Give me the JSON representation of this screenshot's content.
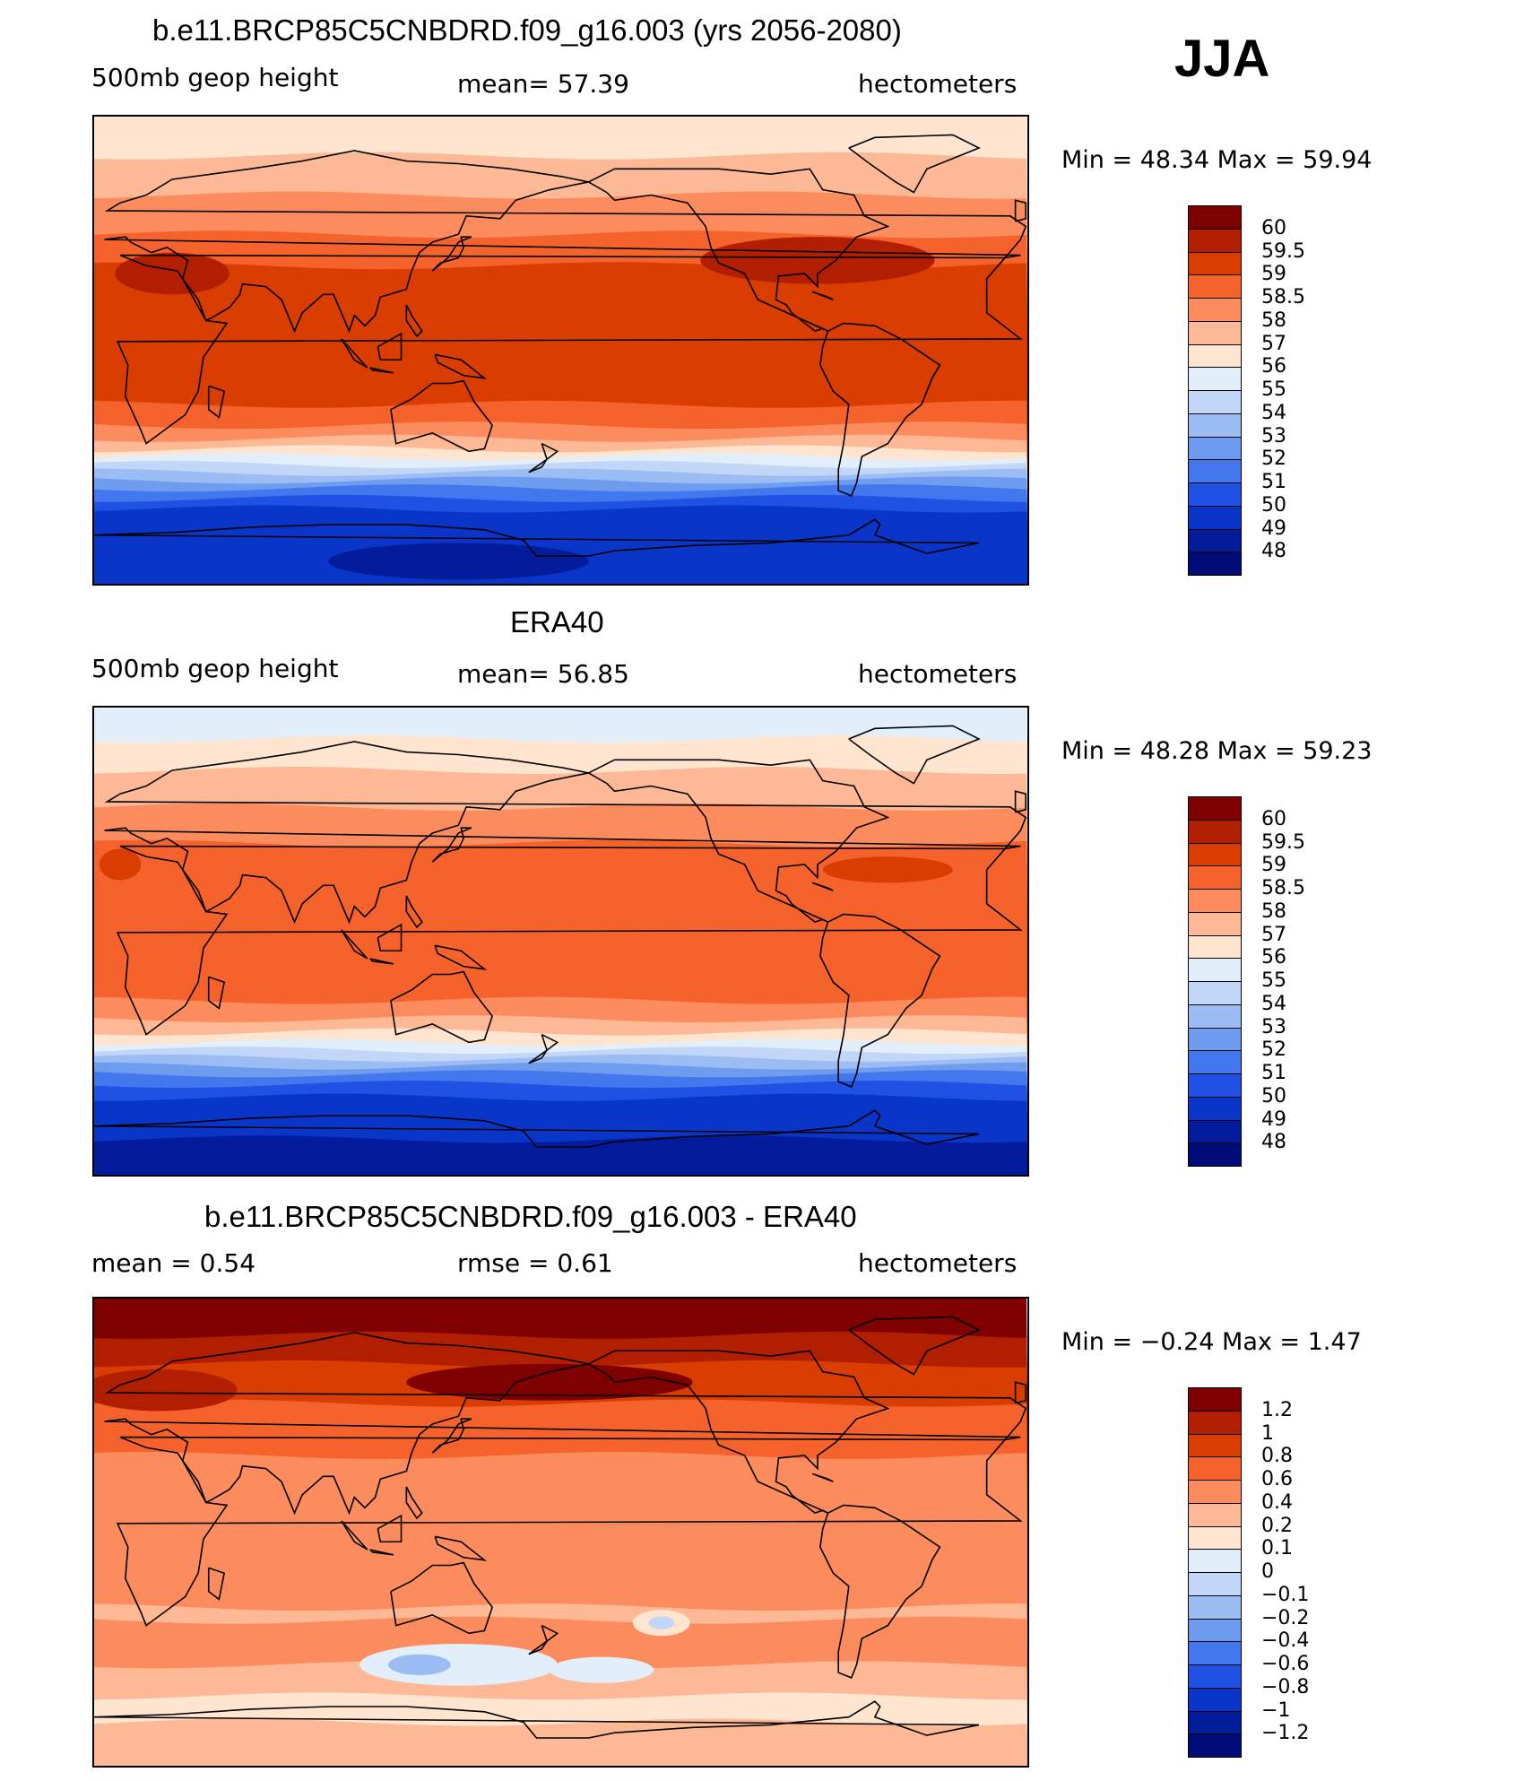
{
  "season": "JJA",
  "panels": [
    {
      "id": "model",
      "title": "b.e11.BRCP85C5CNBDRD.f09_g16.003 (yrs 2056-2080)",
      "left_label": "500mb geop height",
      "center_label": "mean=   57.39",
      "right_label": "hectometers",
      "minmax": "Min =   48.34 Max =   59.94",
      "colorbar": {
        "colors": [
          "#7f0000",
          "#b21e00",
          "#d93d00",
          "#f6622b",
          "#fc8c5e",
          "#fdb896",
          "#ffe4cf",
          "#e3eefb",
          "#c2d7f7",
          "#9bbdf3",
          "#6e9cef",
          "#4277ee",
          "#1f52e4",
          "#0a35c9",
          "#021c9c",
          "#000b78"
        ],
        "labels": [
          "60",
          "59.5",
          "59",
          "58.5",
          "58",
          "57",
          "56",
          "55",
          "54",
          "53",
          "52",
          "51",
          "50",
          "49",
          "48"
        ]
      },
      "field": {
        "bands": [
          {
            "lat": 90,
            "color": "#ffe4cf"
          },
          {
            "lat": 75,
            "color": "#fdb896"
          },
          {
            "lat": 60,
            "color": "#fc8c5e"
          },
          {
            "lat": 45,
            "color": "#f6622b"
          },
          {
            "lat": 33,
            "color": "#d93d00"
          },
          {
            "lat": -20,
            "color": "#f6622b"
          },
          {
            "lat": -28,
            "color": "#fc8c5e"
          },
          {
            "lat": -33,
            "color": "#fdb896"
          },
          {
            "lat": -37,
            "color": "#ffe4cf"
          },
          {
            "lat": -40,
            "color": "#e3eefb"
          },
          {
            "lat": -43,
            "color": "#c2d7f7"
          },
          {
            "lat": -46,
            "color": "#9bbdf3"
          },
          {
            "lat": -49,
            "color": "#6e9cef"
          },
          {
            "lat": -52,
            "color": "#4277ee"
          },
          {
            "lat": -56,
            "color": "#1f52e4"
          },
          {
            "lat": -60,
            "color": "#0a35c9"
          }
        ],
        "blobs": [
          {
            "lon": 30,
            "lat": 30,
            "rx": 22,
            "ry": 8,
            "color": "#b21e00"
          },
          {
            "lon": 278,
            "lat": 35,
            "rx": 45,
            "ry": 9,
            "color": "#b21e00"
          },
          {
            "lon": 140,
            "lat": -80,
            "rx": 50,
            "ry": 7,
            "color": "#021c9c"
          }
        ]
      }
    },
    {
      "id": "obs",
      "title": "ERA40",
      "left_label": "500mb geop height",
      "center_label": "mean=   56.85",
      "right_label": "hectometers",
      "minmax": "Min =   48.28 Max =   59.23",
      "colorbar": {
        "colors": [
          "#7f0000",
          "#b21e00",
          "#d93d00",
          "#f6622b",
          "#fc8c5e",
          "#fdb896",
          "#ffe4cf",
          "#e3eefb",
          "#c2d7f7",
          "#9bbdf3",
          "#6e9cef",
          "#4277ee",
          "#1f52e4",
          "#0a35c9",
          "#021c9c",
          "#000b78"
        ],
        "labels": [
          "60",
          "59.5",
          "59",
          "58.5",
          "58",
          "57",
          "56",
          "55",
          "54",
          "53",
          "52",
          "51",
          "50",
          "49",
          "48"
        ]
      },
      "field": {
        "bands": [
          {
            "lat": 90,
            "color": "#e3eefb"
          },
          {
            "lat": 78,
            "color": "#ffe4cf"
          },
          {
            "lat": 66,
            "color": "#fdb896"
          },
          {
            "lat": 52,
            "color": "#fc8c5e"
          },
          {
            "lat": 38,
            "color": "#f6622b"
          },
          {
            "lat": -22,
            "color": "#fc8c5e"
          },
          {
            "lat": -29,
            "color": "#fdb896"
          },
          {
            "lat": -34,
            "color": "#ffe4cf"
          },
          {
            "lat": -38,
            "color": "#e3eefb"
          },
          {
            "lat": -41,
            "color": "#c2d7f7"
          },
          {
            "lat": -44,
            "color": "#9bbdf3"
          },
          {
            "lat": -47,
            "color": "#6e9cef"
          },
          {
            "lat": -50,
            "color": "#4277ee"
          },
          {
            "lat": -54,
            "color": "#1f52e4"
          },
          {
            "lat": -59,
            "color": "#0a35c9"
          },
          {
            "lat": -75,
            "color": "#021c9c"
          }
        ],
        "blobs": [
          {
            "lon": 10,
            "lat": 30,
            "rx": 8,
            "ry": 6,
            "color": "#d93d00"
          },
          {
            "lon": 305,
            "lat": 28,
            "rx": 25,
            "ry": 5,
            "color": "#d93d00"
          }
        ]
      }
    },
    {
      "id": "diff",
      "title": "b.e11.BRCP85C5CNBDRD.f09_g16.003 - ERA40",
      "left_label": "mean =    0.54",
      "center_label": "rmse =    0.61",
      "right_label": "hectometers",
      "minmax": "Min =  −0.24 Max =    1.47",
      "colorbar": {
        "colors": [
          "#7f0000",
          "#b21e00",
          "#d93d00",
          "#f6622b",
          "#fc8c5e",
          "#fdb896",
          "#ffe4cf",
          "#e3eefb",
          "#c2d7f7",
          "#9bbdf3",
          "#6e9cef",
          "#4277ee",
          "#1f52e4",
          "#0a35c9",
          "#021c9c",
          "#000b78"
        ],
        "labels": [
          "1.2",
          "1",
          "0.8",
          "0.6",
          "0.4",
          "0.2",
          "0.1",
          "0",
          "−0.1",
          "−0.2",
          "−0.4",
          "−0.6",
          "−0.8",
          "−1",
          "−1.2"
        ]
      },
      "field": {
        "bands": [
          {
            "lat": 90,
            "color": "#7f0000"
          },
          {
            "lat": 76,
            "color": "#b21e00"
          },
          {
            "lat": 65,
            "color": "#d93d00"
          },
          {
            "lat": 50,
            "color": "#f6622b"
          },
          {
            "lat": 30,
            "color": "#fc8c5e"
          },
          {
            "lat": -28,
            "color": "#fdb896"
          },
          {
            "lat": -33,
            "color": "#fc8c5e"
          },
          {
            "lat": -50,
            "color": "#fdb896"
          },
          {
            "lat": -62,
            "color": "#ffe4cf"
          },
          {
            "lat": -72,
            "color": "#fdb896"
          }
        ],
        "blobs": [
          {
            "lon": 25,
            "lat": 55,
            "rx": 30,
            "ry": 8,
            "color": "#b21e00"
          },
          {
            "lon": 175,
            "lat": 58,
            "rx": 55,
            "ry": 7,
            "color": "#7f0000"
          },
          {
            "lon": 140,
            "lat": -50,
            "rx": 38,
            "ry": 8,
            "color": "#e3eefb"
          },
          {
            "lon": 125,
            "lat": -50,
            "rx": 12,
            "ry": 4,
            "color": "#9bbdf3"
          },
          {
            "lon": 195,
            "lat": -52,
            "rx": 20,
            "ry": 5,
            "color": "#e3eefb"
          },
          {
            "lon": 218,
            "lat": -34,
            "rx": 11,
            "ry": 5,
            "color": "#ffe4cf"
          },
          {
            "lon": 218,
            "lat": -34,
            "rx": 5,
            "ry": 2.5,
            "color": "#c2d7f7"
          }
        ]
      }
    }
  ]
}
